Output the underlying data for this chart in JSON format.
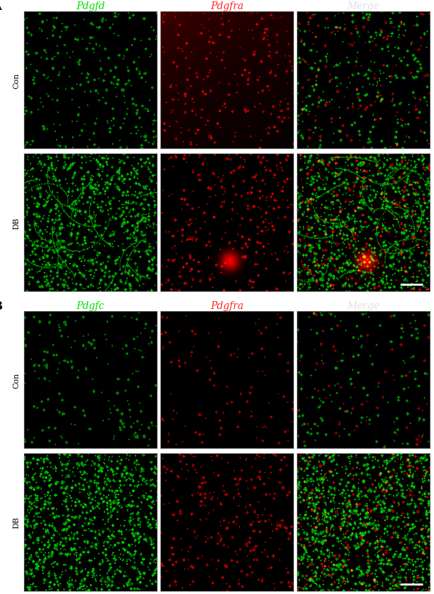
{
  "panel_A_label": "A",
  "panel_B_label": "B",
  "col_labels_A": [
    "Pdgfd",
    "Pdgfra",
    "Merge"
  ],
  "col_labels_B": [
    "Pdgfc",
    "Pdgfra",
    "Merge"
  ],
  "col_label_colors_A": [
    "#00dd00",
    "#ff2020",
    "#cccccc"
  ],
  "col_label_colors_B": [
    "#00dd00",
    "#ff2020",
    "#cccccc"
  ],
  "row_labels_A": [
    "Con",
    "DB"
  ],
  "row_labels_B": [
    "Con",
    "DB"
  ],
  "figure_bg": "#ffffff",
  "label_fontsize": 10,
  "panel_label_fontsize": 12,
  "row_label_fontsize": 8
}
